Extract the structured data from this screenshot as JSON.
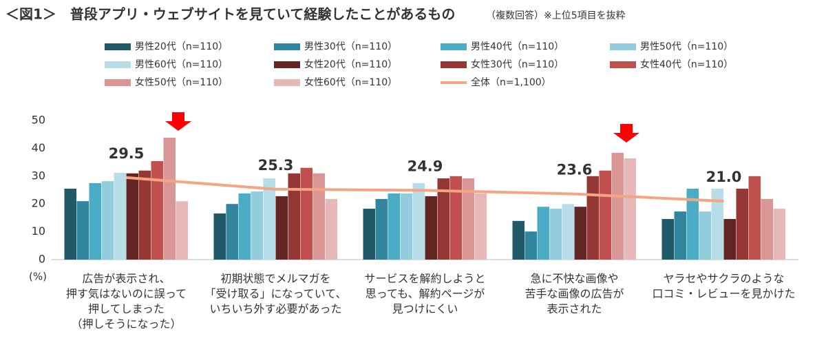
{
  "chart_data": {
    "type": "bar",
    "title": "＜図1＞　普段アプリ・ウェブサイトを見ていて経験したことがあるもの",
    "subtitle": "（複数回答）※上位5項目を抜粋",
    "y_label": "(%)",
    "categories": [
      "広告が表示され、\n押す気はないのに誤って\n押してしまった\n（押しそうになった）",
      "初期状態でメルマガを\n「受け取る」になっていて、\nいちいち外す必要があった",
      "サービスを解約しようと\n思っても、解約ページが\n見つけにくい",
      "急に不快な画像や\n苦手な画像の広告が\n表示された",
      "ヤラセやサクラのような\n口コミ・レビューを見かけた"
    ],
    "series": [
      {
        "name": "男性20代（n=110）",
        "color": "#215968",
        "values": [
          25.5,
          16.6,
          18.3,
          13.9,
          14.6
        ]
      },
      {
        "name": "男性30代（n=110）",
        "color": "#31859c",
        "values": [
          21,
          20,
          21.8,
          10.1,
          17.3
        ]
      },
      {
        "name": "男性40代（n=110）",
        "color": "#4bacc6",
        "values": [
          27.5,
          23.8,
          23.8,
          19,
          25.5
        ]
      },
      {
        "name": "男性50代（n=110）",
        "color": "#93cddd",
        "values": [
          28.2,
          24.5,
          23.8,
          18.3,
          17.3
        ]
      },
      {
        "name": "男性60代（n=110）",
        "color": "#b7dee8",
        "values": [
          31.2,
          29.2,
          27.5,
          20,
          25.5
        ]
      },
      {
        "name": "女性20代（n=110）",
        "color": "#632523",
        "values": [
          31,
          22.8,
          22.8,
          19,
          14.6
        ]
      },
      {
        "name": "女性30代（n=110）",
        "color": "#953735",
        "values": [
          32,
          31,
          29.2,
          30,
          25.5
        ]
      },
      {
        "name": "女性40代（n=110）",
        "color": "#c0504d",
        "values": [
          35.4,
          33,
          30,
          32,
          30
        ]
      },
      {
        "name": "女性50代（n=110）",
        "color": "#d99694",
        "values": [
          43.8,
          31,
          29.2,
          38.4,
          21.8
        ]
      },
      {
        "name": "女性60代（n=110）",
        "color": "#e6b9b8",
        "values": [
          21,
          21.8,
          23.8,
          36.4,
          18.3
        ]
      },
      {
        "name": "全体（n=1,100）",
        "color": "#f4a582",
        "type": "line",
        "values": [
          29.5,
          25.3,
          24.9,
          23.6,
          21.0
        ],
        "value_labels": [
          "29.5",
          "25.3",
          "24.9",
          "23.6",
          "21.0"
        ]
      }
    ],
    "ylim": [
      0,
      50
    ],
    "yticks": [
      0,
      10,
      20,
      30,
      40,
      50
    ],
    "grid": false
  }
}
